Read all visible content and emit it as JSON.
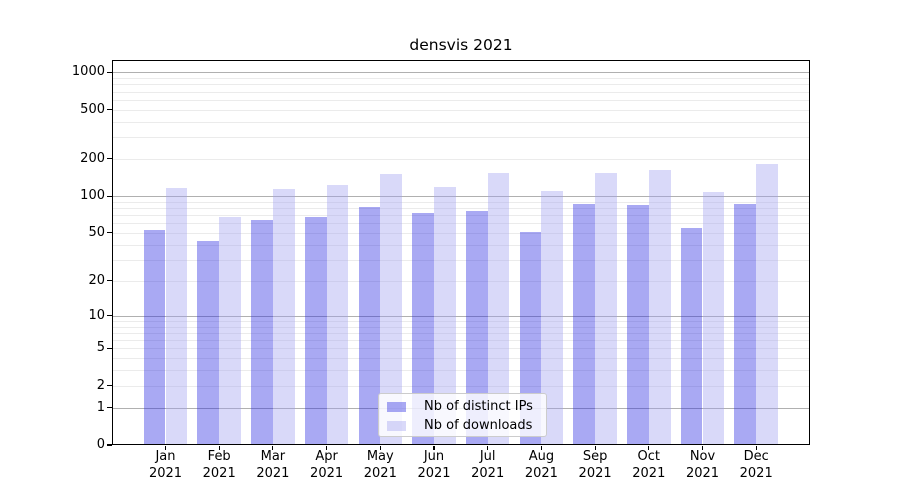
{
  "title": "densvis 2021",
  "legend": {
    "items": [
      {
        "label": "Nb of distinct IPs"
      },
      {
        "label": "Nb of downloads"
      }
    ]
  },
  "chart_data": {
    "type": "bar",
    "title": "densvis 2021",
    "categories": [
      "Jan",
      "Feb",
      "Mar",
      "Apr",
      "May",
      "Jun",
      "Jul",
      "Aug",
      "Sep",
      "Oct",
      "Nov",
      "Dec"
    ],
    "year_label": "2021",
    "series": [
      {
        "name": "Nb of distinct IPs",
        "color": "rgba(40,40,225,0.4)",
        "values": [
          53,
          43,
          64,
          67,
          81,
          73,
          76,
          51,
          87,
          84,
          55,
          86
        ]
      },
      {
        "name": "Nb of downloads",
        "color": "rgba(160,160,240,0.4)",
        "values": [
          117,
          68,
          115,
          124,
          151,
          118,
          154,
          111,
          155,
          164,
          107,
          181
        ]
      }
    ],
    "yscale": "log1p",
    "yticks": [
      0,
      1,
      2,
      5,
      10,
      20,
      50,
      100,
      200,
      500,
      1000
    ],
    "ylim": [
      0,
      1260
    ],
    "grid": true,
    "legend_position": "inside-bottom-center"
  },
  "colors": {
    "bar_dark": "rgba(40,40,225,0.4)",
    "bar_light": "rgba(160,160,240,0.4)",
    "major_grid": "#b0b0b0",
    "minor_grid": "#ebebeb",
    "spine": "#000000",
    "text": "#000000",
    "legend_border": "#cccccc",
    "legend_bg": "rgba(255,255,255,0.8)"
  }
}
